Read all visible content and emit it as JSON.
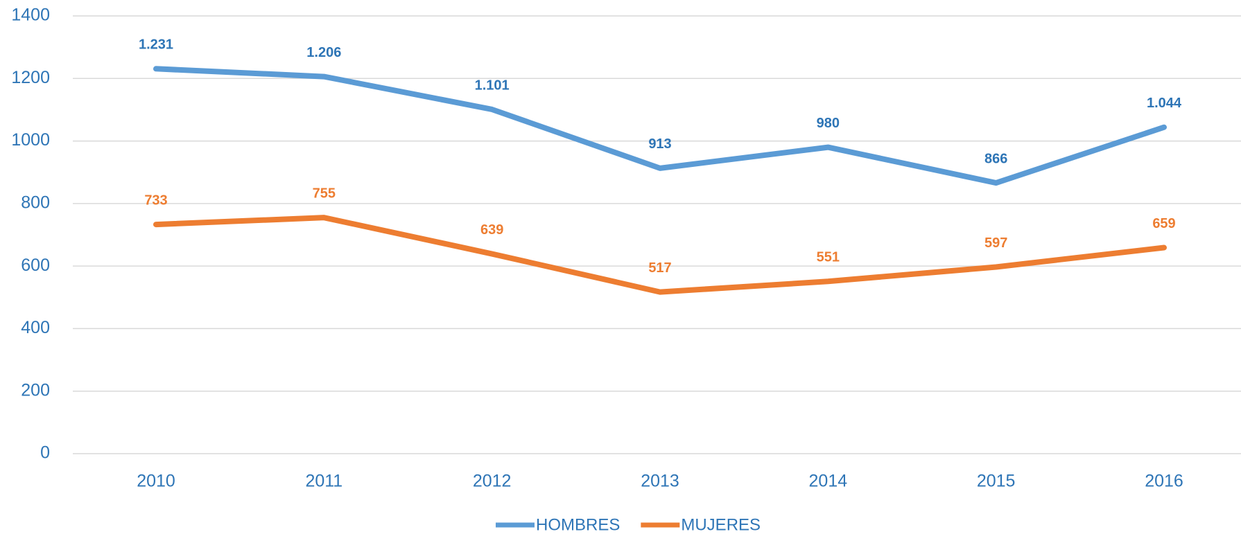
{
  "chart_data": {
    "type": "line",
    "categories": [
      "2010",
      "2011",
      "2012",
      "2013",
      "2014",
      "2015",
      "2016"
    ],
    "series": [
      {
        "name": "HOMBRES",
        "color": "#5b9bd5",
        "label_color": "#2e75b6",
        "values": [
          1231,
          1206,
          1101,
          913,
          980,
          866,
          1044
        ],
        "value_labels": [
          "1.231",
          "1.206",
          "1.101",
          "913",
          "980",
          "866",
          "1.044"
        ]
      },
      {
        "name": "MUJERES",
        "color": "#ed7d31",
        "label_color": "#ed7d31",
        "values": [
          733,
          755,
          639,
          517,
          551,
          597,
          659
        ]
      }
    ],
    "ylim": [
      0,
      1400
    ],
    "yticks": [
      0,
      200,
      400,
      600,
      800,
      1000,
      1200,
      1400
    ],
    "grid": true,
    "legend": "bottom"
  }
}
